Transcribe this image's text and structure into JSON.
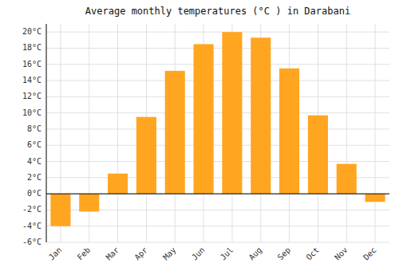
{
  "chart_data": {
    "type": "bar",
    "title": "Average monthly temperatures (°C ) in Darabani",
    "categories": [
      "Jan",
      "Feb",
      "Mar",
      "Apr",
      "May",
      "Jun",
      "Jul",
      "Aug",
      "Sep",
      "Oct",
      "Nov",
      "Dec"
    ],
    "values": [
      -4.0,
      -2.2,
      2.5,
      9.5,
      15.2,
      18.5,
      20.0,
      19.3,
      15.5,
      9.7,
      3.7,
      -1.0
    ],
    "color": "#FFA520",
    "ylim": [
      -6,
      21
    ],
    "yticks": [
      {
        "value": -6,
        "label": "-6°C"
      },
      {
        "value": -4,
        "label": "-4°C"
      },
      {
        "value": -2,
        "label": "-2°C"
      },
      {
        "value": 0,
        "label": "0°C"
      },
      {
        "value": 2,
        "label": "2°C"
      },
      {
        "value": 4,
        "label": "4°C"
      },
      {
        "value": 6,
        "label": "6°C"
      },
      {
        "value": 8,
        "label": "8°C"
      },
      {
        "value": 10,
        "label": "10°C"
      },
      {
        "value": 12,
        "label": "12°C"
      },
      {
        "value": 14,
        "label": "14°C"
      },
      {
        "value": 16,
        "label": "16°C"
      },
      {
        "value": 18,
        "label": "18°C"
      },
      {
        "value": 20,
        "label": "20°C"
      }
    ],
    "grid": true
  }
}
